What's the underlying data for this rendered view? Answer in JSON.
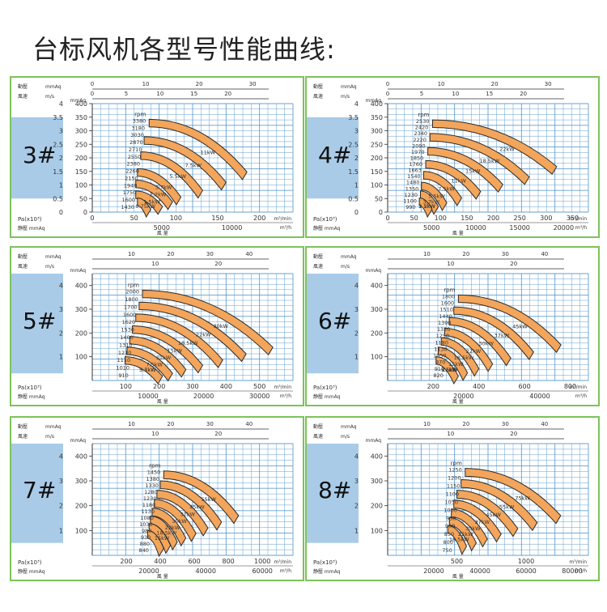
{
  "title": "台标风机各型号性能曲线:",
  "colors": {
    "border": "#7cc35a",
    "grid": "#4a90c9",
    "band": "#a9cbe8",
    "fill": "#f2a55b",
    "curve": "#2a2a2a",
    "text": "#333333"
  },
  "chart_data": [
    {
      "type": "area",
      "model": "3#",
      "rpm_label": "rpm",
      "band_range": [
        0.5,
        3.5
      ],
      "top_axes": [
        {
          "name": "動壓",
          "unit": "mmAq",
          "ticks": [
            "0",
            "10",
            "20",
            "30"
          ],
          "range": [
            0,
            33
          ]
        },
        {
          "name": "風速",
          "unit": "m/s",
          "ticks": [
            "0",
            "5",
            "10",
            "15",
            "20"
          ],
          "range": [
            0,
            26
          ]
        }
      ],
      "left_axis": {
        "unit": "mmAq",
        "ticks": [
          "400",
          "350",
          "300",
          "250",
          "200",
          "150",
          "100",
          "50",
          "0"
        ],
        "range": [
          0,
          400
        ],
        "outer_ticks": [
          "4",
          "3.5",
          "3",
          "2.5",
          "2",
          "1.5",
          "1",
          "0.5",
          "0"
        ]
      },
      "bottom_axes": [
        {
          "name": "Pa(x10³)",
          "unit": "m³/min",
          "ticks": [
            "0",
            "50",
            "100",
            "150",
            "200"
          ],
          "range": [
            0,
            240
          ]
        },
        {
          "name": "静壓 mmAq",
          "unit": "m³/h",
          "ticks": [
            "5000",
            "10000"
          ],
          "positions": [
            83,
            167
          ],
          "label": "風 量"
        }
      ],
      "rpm": [
        "3380",
        "3180",
        "3030",
        "2870",
        "2710",
        "2550",
        "2380",
        "2260",
        "2150",
        "1940",
        "1750",
        "1600",
        "1430"
      ],
      "power": [
        "11kW",
        "7.5kW",
        "5.5kW",
        "3.7kW",
        "2.2kW",
        "1.5kW",
        "0.75kW"
      ],
      "bands": [
        {
          "x0": 68,
          "x1": 185,
          "y0": 342,
          "y1": 148
        },
        {
          "x0": 62,
          "x1": 160,
          "y0": 278,
          "y1": 110
        },
        {
          "x0": 58,
          "x1": 132,
          "y0": 222,
          "y1": 80
        },
        {
          "x0": 54,
          "x1": 106,
          "y0": 160,
          "y1": 55
        },
        {
          "x0": 52,
          "x1": 96,
          "y0": 118,
          "y1": 38
        },
        {
          "x0": 52,
          "x1": 84,
          "y0": 78,
          "y1": 20
        },
        {
          "x0": 54,
          "x1": 70,
          "y0": 52,
          "y1": 10
        }
      ]
    },
    {
      "type": "area",
      "model": "4#",
      "rpm_label": "rpm",
      "band_range": [
        0.5,
        3.5
      ],
      "top_axes": [
        {
          "name": "動壓",
          "unit": "mmAq",
          "ticks": [
            "0",
            "10",
            "20",
            "30"
          ],
          "range": [
            0,
            33
          ]
        },
        {
          "name": "風速",
          "unit": "m/s",
          "ticks": [
            "0",
            "5",
            "10",
            "15",
            "20"
          ],
          "range": [
            0,
            26
          ]
        }
      ],
      "left_axis": {
        "unit": "mmAq",
        "ticks": [
          "400",
          "350",
          "300",
          "250",
          "200",
          "150",
          "100",
          "50",
          "0"
        ],
        "range": [
          0,
          400
        ],
        "outer_ticks": [
          "4",
          "3.5",
          "3",
          "2.5",
          "2",
          "1.5",
          "1",
          "0.5",
          "0"
        ]
      },
      "bottom_axes": [
        {
          "name": "Pa(x10³)",
          "unit": "m³/min",
          "ticks": [
            "0",
            "50",
            "100",
            "150",
            "200",
            "250",
            "300",
            "350"
          ],
          "range": [
            0,
            380
          ]
        },
        {
          "name": "静壓 mmAq",
          "unit": "m³/h",
          "ticks": [
            "5000",
            "10000",
            "15000",
            "20000"
          ],
          "positions": [
            83,
            167,
            250,
            333
          ],
          "label": "風 量"
        }
      ],
      "rpm": [
        "2530",
        "2420",
        "2340",
        "2220",
        "2090",
        "1970",
        "1850",
        "1760",
        "1663",
        "1540",
        "1480",
        "1350",
        "1230",
        "1100",
        "990"
      ],
      "power": [
        "22kW",
        "18.5kW",
        "15kW",
        "11kW",
        "7.5kW",
        "5.5kW",
        "3.7kW",
        "2.2kW",
        "1.5kW"
      ],
      "bands": [
        {
          "x0": 85,
          "x1": 320,
          "y0": 340,
          "y1": 168
        },
        {
          "x0": 80,
          "x1": 268,
          "y0": 290,
          "y1": 130
        },
        {
          "x0": 76,
          "x1": 218,
          "y0": 238,
          "y1": 102
        },
        {
          "x0": 72,
          "x1": 176,
          "y0": 190,
          "y1": 76
        },
        {
          "x0": 68,
          "x1": 140,
          "y0": 150,
          "y1": 52
        },
        {
          "x0": 64,
          "x1": 112,
          "y0": 110,
          "y1": 34
        },
        {
          "x0": 62,
          "x1": 96,
          "y0": 78,
          "y1": 20
        },
        {
          "x0": 60,
          "x1": 84,
          "y0": 52,
          "y1": 10
        }
      ]
    },
    {
      "type": "area",
      "model": "5#",
      "rpm_label": "rpm",
      "band_range": [
        0.3,
        4.5
      ],
      "top_axes": [
        {
          "name": "動壓",
          "unit": "mmAq",
          "ticks": [
            "10",
            "20",
            "30",
            "40"
          ],
          "range": [
            0,
            45
          ]
        },
        {
          "name": "風速",
          "unit": "m/s",
          "ticks": [
            "10",
            "20"
          ],
          "range": [
            0,
            28
          ]
        }
      ],
      "left_axis": {
        "unit": "mmAq",
        "ticks": [
          "400",
          "300",
          "200",
          "100"
        ],
        "range": [
          0,
          450
        ],
        "outer_ticks": [
          "4",
          "3",
          "2",
          "1"
        ]
      },
      "bottom_axes": [
        {
          "name": "Pa(x10³)",
          "unit": "m³/min",
          "ticks": [
            "100",
            "200",
            "300",
            "400",
            "500"
          ],
          "range": [
            0,
            600
          ]
        },
        {
          "name": "静壓 mmAq",
          "unit": "m³/h",
          "ticks": [
            "10000",
            "20000",
            "30000"
          ],
          "positions": [
            167,
            333,
            500
          ],
          "label": "風 量"
        }
      ],
      "rpm": [
        "2000",
        "1800",
        "1700",
        "1600",
        "1620",
        "1530",
        "1400",
        "1310",
        "1210",
        "1110",
        "1010",
        "910"
      ],
      "power": [
        "30kW",
        "22kW",
        "18.5kW",
        "15kW",
        "11kW",
        "7.5kW",
        "5.5kW",
        "3.7kW"
      ],
      "bands": [
        {
          "x0": 150,
          "x1": 540,
          "y0": 380,
          "y1": 140
        },
        {
          "x0": 140,
          "x1": 460,
          "y0": 330,
          "y1": 112
        },
        {
          "x0": 130,
          "x1": 390,
          "y0": 280,
          "y1": 86
        },
        {
          "x0": 120,
          "x1": 330,
          "y0": 230,
          "y1": 64
        },
        {
          "x0": 112,
          "x1": 280,
          "y0": 185,
          "y1": 46
        },
        {
          "x0": 104,
          "x1": 240,
          "y0": 140,
          "y1": 30
        },
        {
          "x0": 98,
          "x1": 210,
          "y0": 100,
          "y1": 18
        }
      ]
    },
    {
      "type": "area",
      "model": "6#",
      "rpm_label": "rpm",
      "band_range": [
        0.3,
        4.5
      ],
      "top_axes": [
        {
          "name": "動壓",
          "unit": "mmAq",
          "ticks": [
            "10",
            "20",
            "30",
            "40"
          ],
          "range": [
            0,
            45
          ]
        },
        {
          "name": "風速",
          "unit": "m/s",
          "ticks": [
            "10",
            "20"
          ],
          "range": [
            0,
            28
          ]
        }
      ],
      "left_axis": {
        "unit": "mmAq",
        "ticks": [
          "400",
          "300",
          "200",
          "100"
        ],
        "range": [
          0,
          450
        ],
        "outer_ticks": [
          "4",
          "3",
          "2",
          "1"
        ]
      },
      "bottom_axes": [
        {
          "name": "Pa(x10³)",
          "unit": "m³/min",
          "ticks": [
            "200",
            "400",
            "600",
            "800"
          ],
          "range": [
            0,
            880
          ]
        },
        {
          "name": "静壓 mmAq",
          "unit": "m³/h",
          "ticks": [
            "20000",
            "40000"
          ],
          "positions": [
            333,
            667
          ],
          "label": "風 量"
        }
      ],
      "rpm": [
        "1800",
        "1600",
        "1510",
        "1440",
        "1390",
        "1320",
        "1250",
        "1180",
        "1130",
        "1050",
        "970",
        "910",
        "820"
      ],
      "power": [
        "45kW",
        "37kW",
        "30kW",
        "22kW",
        "18.5kW",
        "15kW",
        "11kW",
        "7.5kW",
        "5.5kW"
      ],
      "bands": [
        {
          "x0": 310,
          "x1": 760,
          "y0": 360,
          "y1": 150
        },
        {
          "x0": 290,
          "x1": 640,
          "y0": 310,
          "y1": 120
        },
        {
          "x0": 270,
          "x1": 540,
          "y0": 265,
          "y1": 94
        },
        {
          "x0": 250,
          "x1": 460,
          "y0": 220,
          "y1": 70
        },
        {
          "x0": 235,
          "x1": 400,
          "y0": 180,
          "y1": 50
        },
        {
          "x0": 222,
          "x1": 350,
          "y0": 140,
          "y1": 32
        },
        {
          "x0": 212,
          "x1": 310,
          "y0": 100,
          "y1": 18
        }
      ]
    },
    {
      "type": "area",
      "model": "7#",
      "rpm_label": "rpm",
      "band_range": [
        0.5,
        4.5
      ],
      "top_axes": [
        {
          "name": "動壓",
          "unit": "mmAq",
          "ticks": [
            "10",
            "20",
            "30",
            "40"
          ],
          "range": [
            0,
            45
          ]
        },
        {
          "name": "風速",
          "unit": "m/s",
          "ticks": [
            "10",
            "20"
          ],
          "range": [
            0,
            28
          ]
        }
      ],
      "left_axis": {
        "unit": "mmAq",
        "ticks": [
          "400",
          "300",
          "200",
          "100"
        ],
        "range": [
          0,
          450
        ],
        "outer_ticks": [
          "4",
          "3",
          "2",
          "1"
        ]
      },
      "bottom_axes": [
        {
          "name": "Pa(x10³)",
          "unit": "m³/min",
          "ticks": [
            "200",
            "400",
            "600",
            "800",
            "1000"
          ],
          "range": [
            0,
            1180
          ]
        },
        {
          "name": "静壓 mmAq",
          "unit": "m³/h",
          "ticks": [
            "20000",
            "40000",
            "60000"
          ],
          "positions": [
            333,
            667,
            1000
          ],
          "label": "風 量"
        }
      ],
      "rpm": [
        "1450",
        "1380",
        "1330",
        "1280",
        "1230",
        "1180",
        "1130",
        "1080",
        "1030",
        "980",
        "930",
        "880",
        "840"
      ],
      "power": [
        "55kW",
        "45kW",
        "37kW",
        "30kW",
        "22kW",
        "18.5kW",
        "15kW"
      ],
      "bands": [
        {
          "x0": 420,
          "x1": 860,
          "y0": 340,
          "y1": 160
        },
        {
          "x0": 400,
          "x1": 760,
          "y0": 300,
          "y1": 134
        },
        {
          "x0": 380,
          "x1": 680,
          "y0": 262,
          "y1": 110
        },
        {
          "x0": 365,
          "x1": 610,
          "y0": 225,
          "y1": 88
        },
        {
          "x0": 352,
          "x1": 550,
          "y0": 190,
          "y1": 70
        },
        {
          "x0": 342,
          "x1": 500,
          "y0": 158,
          "y1": 54
        },
        {
          "x0": 334,
          "x1": 460,
          "y0": 128,
          "y1": 40
        },
        {
          "x0": 326,
          "x1": 420,
          "y0": 100,
          "y1": 28
        }
      ]
    },
    {
      "type": "area",
      "model": "8#",
      "rpm_label": "rpm",
      "band_range": [
        0.5,
        4.5
      ],
      "top_axes": [
        {
          "name": "動壓",
          "unit": "mmAq",
          "ticks": [
            "10",
            "20",
            "30",
            "40"
          ],
          "range": [
            0,
            45
          ]
        },
        {
          "name": "風速",
          "unit": "m/s",
          "ticks": [
            "10",
            "20"
          ],
          "range": [
            0,
            28
          ]
        }
      ],
      "left_axis": {
        "unit": "mmAq",
        "ticks": [
          "400",
          "300",
          "200",
          "100"
        ],
        "range": [
          0,
          450
        ],
        "outer_ticks": [
          "4",
          "3",
          "2",
          "1"
        ]
      },
      "bottom_axes": [
        {
          "name": "Pa(x10³)",
          "unit": "m³/min",
          "ticks": [
            "500",
            "1000"
          ],
          "range": [
            0,
            1450
          ]
        },
        {
          "name": "静壓 mmAq",
          "unit": "m³/h",
          "ticks": [
            "20000",
            "40000",
            "60000",
            "80000"
          ],
          "positions": [
            333,
            667,
            1000,
            1333
          ],
          "label": "風 量"
        }
      ],
      "rpm": [
        "1250",
        "1200",
        "1150",
        "1100",
        "1050",
        "1000",
        "950",
        "900",
        "850",
        "800",
        "750"
      ],
      "power": [
        "75kW",
        "55kW",
        "45kW",
        "37kW",
        "30kW",
        "22kW",
        "18.5kW"
      ],
      "bands": [
        {
          "x0": 560,
          "x1": 1250,
          "y0": 350,
          "y1": 160
        },
        {
          "x0": 530,
          "x1": 1080,
          "y0": 305,
          "y1": 132
        },
        {
          "x0": 500,
          "x1": 940,
          "y0": 262,
          "y1": 108
        },
        {
          "x0": 478,
          "x1": 820,
          "y0": 222,
          "y1": 86
        },
        {
          "x0": 460,
          "x1": 720,
          "y0": 186,
          "y1": 66
        },
        {
          "x0": 446,
          "x1": 640,
          "y0": 152,
          "y1": 50
        },
        {
          "x0": 434,
          "x1": 570,
          "y0": 120,
          "y1": 36
        }
      ]
    }
  ]
}
